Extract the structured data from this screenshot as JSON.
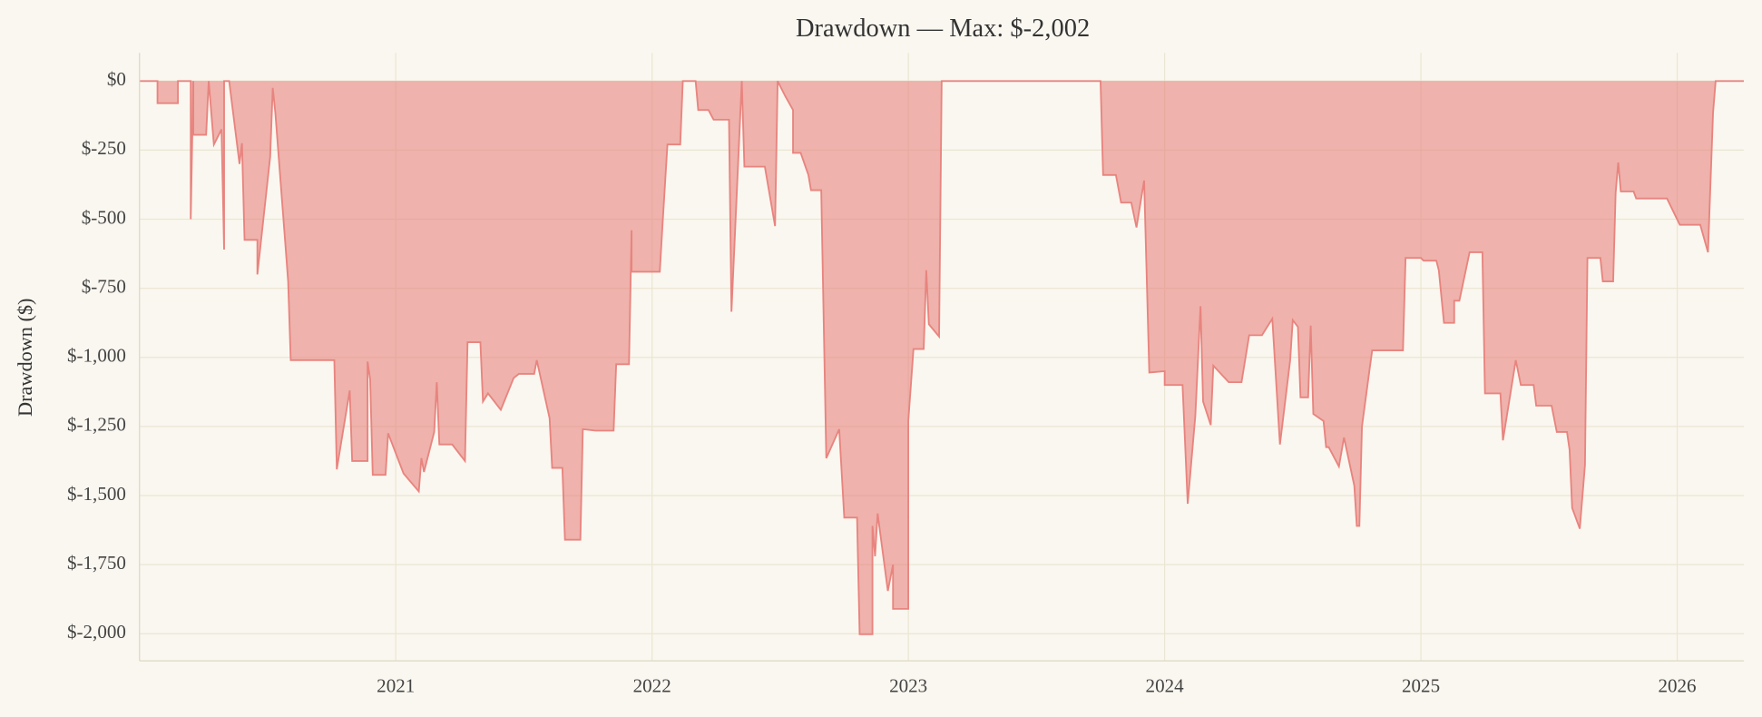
{
  "chart_data": {
    "type": "area",
    "title": "Drawdown — Max: $-2,002",
    "ylabel": "Drawdown ($)",
    "color": "#e8847f",
    "grid": true,
    "xlim": [
      2020.0,
      2026.26
    ],
    "xticks": [
      2021,
      2022,
      2023,
      2024,
      2025,
      2026
    ],
    "ylim": [
      -2098,
      102
    ],
    "yticks": [
      {
        "value": 0,
        "label": "$0"
      },
      {
        "value": -250,
        "label": "$-250"
      },
      {
        "value": -500,
        "label": "$-500"
      },
      {
        "value": -750,
        "label": "$-750"
      },
      {
        "value": -1000,
        "label": "$-1,000"
      },
      {
        "value": -1250,
        "label": "$-1,250"
      },
      {
        "value": -1500,
        "label": "$-1,500"
      },
      {
        "value": -1750,
        "label": "$-1,750"
      },
      {
        "value": -2000,
        "label": "$-2,000"
      }
    ],
    "x": [
      2020.0,
      2020.07,
      2020.07,
      2020.15,
      2020.15,
      2020.2,
      2020.2,
      2020.21,
      2020.21,
      2020.26,
      2020.27,
      2020.29,
      2020.32,
      2020.33,
      2020.33,
      2020.35,
      2020.39,
      2020.4,
      2020.41,
      2020.46,
      2020.46,
      2020.51,
      2020.52,
      2020.53,
      2020.57,
      2020.58,
      2020.59,
      2020.76,
      2020.77,
      2020.82,
      2020.83,
      2020.89,
      2020.89,
      2020.9,
      2020.91,
      2020.96,
      2020.97,
      2021.03,
      2021.09,
      2021.1,
      2021.11,
      2021.15,
      2021.16,
      2021.17,
      2021.22,
      2021.27,
      2021.28,
      2021.33,
      2021.34,
      2021.36,
      2021.41,
      2021.46,
      2021.48,
      2021.54,
      2021.55,
      2021.6,
      2021.61,
      2021.65,
      2021.66,
      2021.72,
      2021.73,
      2021.78,
      2021.85,
      2021.86,
      2021.91,
      2021.92,
      2021.92,
      2022.03,
      2022.04,
      2022.06,
      2022.11,
      2022.12,
      2022.17,
      2022.18,
      2022.22,
      2022.24,
      2022.3,
      2022.31,
      2022.35,
      2022.36,
      2022.44,
      2022.48,
      2022.49,
      2022.52,
      2022.55,
      2022.55,
      2022.58,
      2022.61,
      2022.62,
      2022.66,
      2022.68,
      2022.73,
      2022.75,
      2022.8,
      2022.81,
      2022.86,
      2022.86,
      2022.87,
      2022.88,
      2022.92,
      2022.94,
      2022.94,
      2023.0,
      2023.0,
      2023.02,
      2023.06,
      2023.07,
      2023.08,
      2023.12,
      2023.13,
      2023.75,
      2023.76,
      2023.81,
      2023.83,
      2023.87,
      2023.89,
      2023.92,
      2023.94,
      2024.0,
      2024.0,
      2024.07,
      2024.09,
      2024.12,
      2024.14,
      2024.15,
      2024.18,
      2024.19,
      2024.25,
      2024.3,
      2024.33,
      2024.38,
      2024.42,
      2024.45,
      2024.49,
      2024.5,
      2024.52,
      2024.53,
      2024.56,
      2024.57,
      2024.58,
      2024.62,
      2024.63,
      2024.64,
      2024.68,
      2024.7,
      2024.74,
      2024.75,
      2024.76,
      2024.77,
      2024.8,
      2024.81,
      2024.93,
      2024.94,
      2025.0,
      2025.01,
      2025.06,
      2025.07,
      2025.09,
      2025.13,
      2025.13,
      2025.15,
      2025.19,
      2025.24,
      2025.25,
      2025.31,
      2025.32,
      2025.37,
      2025.39,
      2025.44,
      2025.45,
      2025.51,
      2025.53,
      2025.57,
      2025.58,
      2025.59,
      2025.62,
      2025.64,
      2025.65,
      2025.7,
      2025.71,
      2025.75,
      2025.76,
      2025.77,
      2025.78,
      2025.83,
      2025.84,
      2025.96,
      2026.01,
      2026.09,
      2026.12,
      2026.14,
      2026.15,
      2026.26
    ],
    "values": [
      0,
      0,
      -80,
      -80,
      0,
      0,
      -500,
      0,
      -195,
      -195,
      0,
      -230,
      -175,
      -610,
      0,
      0,
      -300,
      -225,
      -575,
      -575,
      -700,
      -275,
      -25,
      -115,
      -600,
      -725,
      -1010,
      -1010,
      -1405,
      -1120,
      -1375,
      -1375,
      -1015,
      -1080,
      -1425,
      -1425,
      -1275,
      -1420,
      -1485,
      -1365,
      -1415,
      -1270,
      -1090,
      -1315,
      -1315,
      -1375,
      -945,
      -945,
      -1160,
      -1130,
      -1190,
      -1075,
      -1060,
      -1060,
      -1010,
      -1220,
      -1400,
      -1400,
      -1660,
      -1660,
      -1260,
      -1265,
      -1265,
      -1025,
      -1025,
      -540,
      -690,
      -690,
      -530,
      -230,
      -230,
      0,
      0,
      -105,
      -105,
      -140,
      -140,
      -835,
      0,
      -310,
      -310,
      -525,
      0,
      -55,
      -105,
      -260,
      -260,
      -340,
      -395,
      -395,
      -1365,
      -1260,
      -1580,
      -1580,
      -2002,
      -2002,
      -1610,
      -1720,
      -1565,
      -1845,
      -1750,
      -1910,
      -1910,
      -1230,
      -970,
      -970,
      -685,
      -880,
      -925,
      0,
      0,
      -340,
      -340,
      -440,
      -440,
      -530,
      -360,
      -1055,
      -1050,
      -1100,
      -1100,
      -1530,
      -1210,
      -815,
      -1160,
      -1245,
      -1030,
      -1090,
      -1090,
      -920,
      -920,
      -860,
      -1315,
      -1010,
      -865,
      -890,
      -1145,
      -1145,
      -885,
      -1205,
      -1230,
      -1325,
      -1325,
      -1395,
      -1290,
      -1465,
      -1610,
      -1610,
      -1250,
      -1040,
      -975,
      -975,
      -640,
      -640,
      -650,
      -650,
      -685,
      -875,
      -875,
      -795,
      -795,
      -620,
      -620,
      -1130,
      -1130,
      -1300,
      -1010,
      -1100,
      -1100,
      -1175,
      -1175,
      -1270,
      -1270,
      -1335,
      -1545,
      -1620,
      -1390,
      -640,
      -640,
      -725,
      -725,
      -405,
      -295,
      -400,
      -400,
      -425,
      -425,
      -520,
      -520,
      -620,
      -115,
      0,
      0
    ]
  }
}
